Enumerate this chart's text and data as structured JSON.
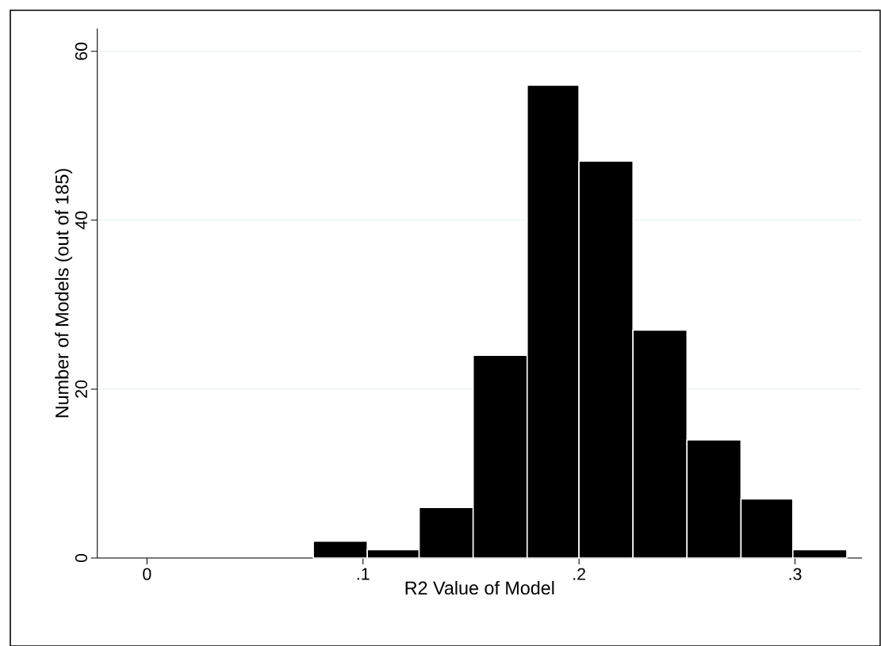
{
  "chart_data": {
    "type": "histogram",
    "xlabel": "R2 Value of Model",
    "ylabel": "Number of Models (out of 185)",
    "bins": [
      0.077,
      0.102,
      0.126,
      0.151,
      0.176,
      0.2,
      0.225,
      0.25,
      0.275,
      0.299,
      0.324
    ],
    "values": [
      2,
      1,
      6,
      24,
      56,
      47,
      27,
      14,
      7,
      1
    ],
    "color": "#000000",
    "xlim": [
      -0.023,
      0.331
    ],
    "ylim": [
      0,
      62.7
    ],
    "xticks": [
      0,
      {
        "value": 0.1,
        "label": ".1"
      },
      {
        "value": 0.2,
        "label": ".2"
      },
      {
        "value": 0.3,
        "label": ".3"
      }
    ],
    "yticks": [
      0,
      20,
      40,
      60
    ],
    "grid": "y"
  }
}
